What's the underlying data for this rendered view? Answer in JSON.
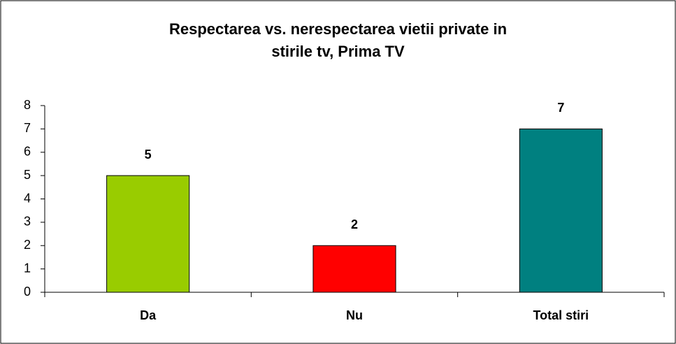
{
  "chart_data": {
    "type": "bar",
    "title": "Respectarea vs. nerespectarea vietii private in stirile tv, Prima TV",
    "categories": [
      "Da",
      "Nu",
      "Total stiri"
    ],
    "values": [
      5,
      2,
      7
    ],
    "colors": [
      "#99cc00",
      "#ff0000",
      "#008080"
    ],
    "ylim": [
      0,
      8
    ],
    "yticks": [
      0,
      1,
      2,
      3,
      4,
      5,
      6,
      7,
      8
    ],
    "grid": false,
    "data_labels": true
  }
}
